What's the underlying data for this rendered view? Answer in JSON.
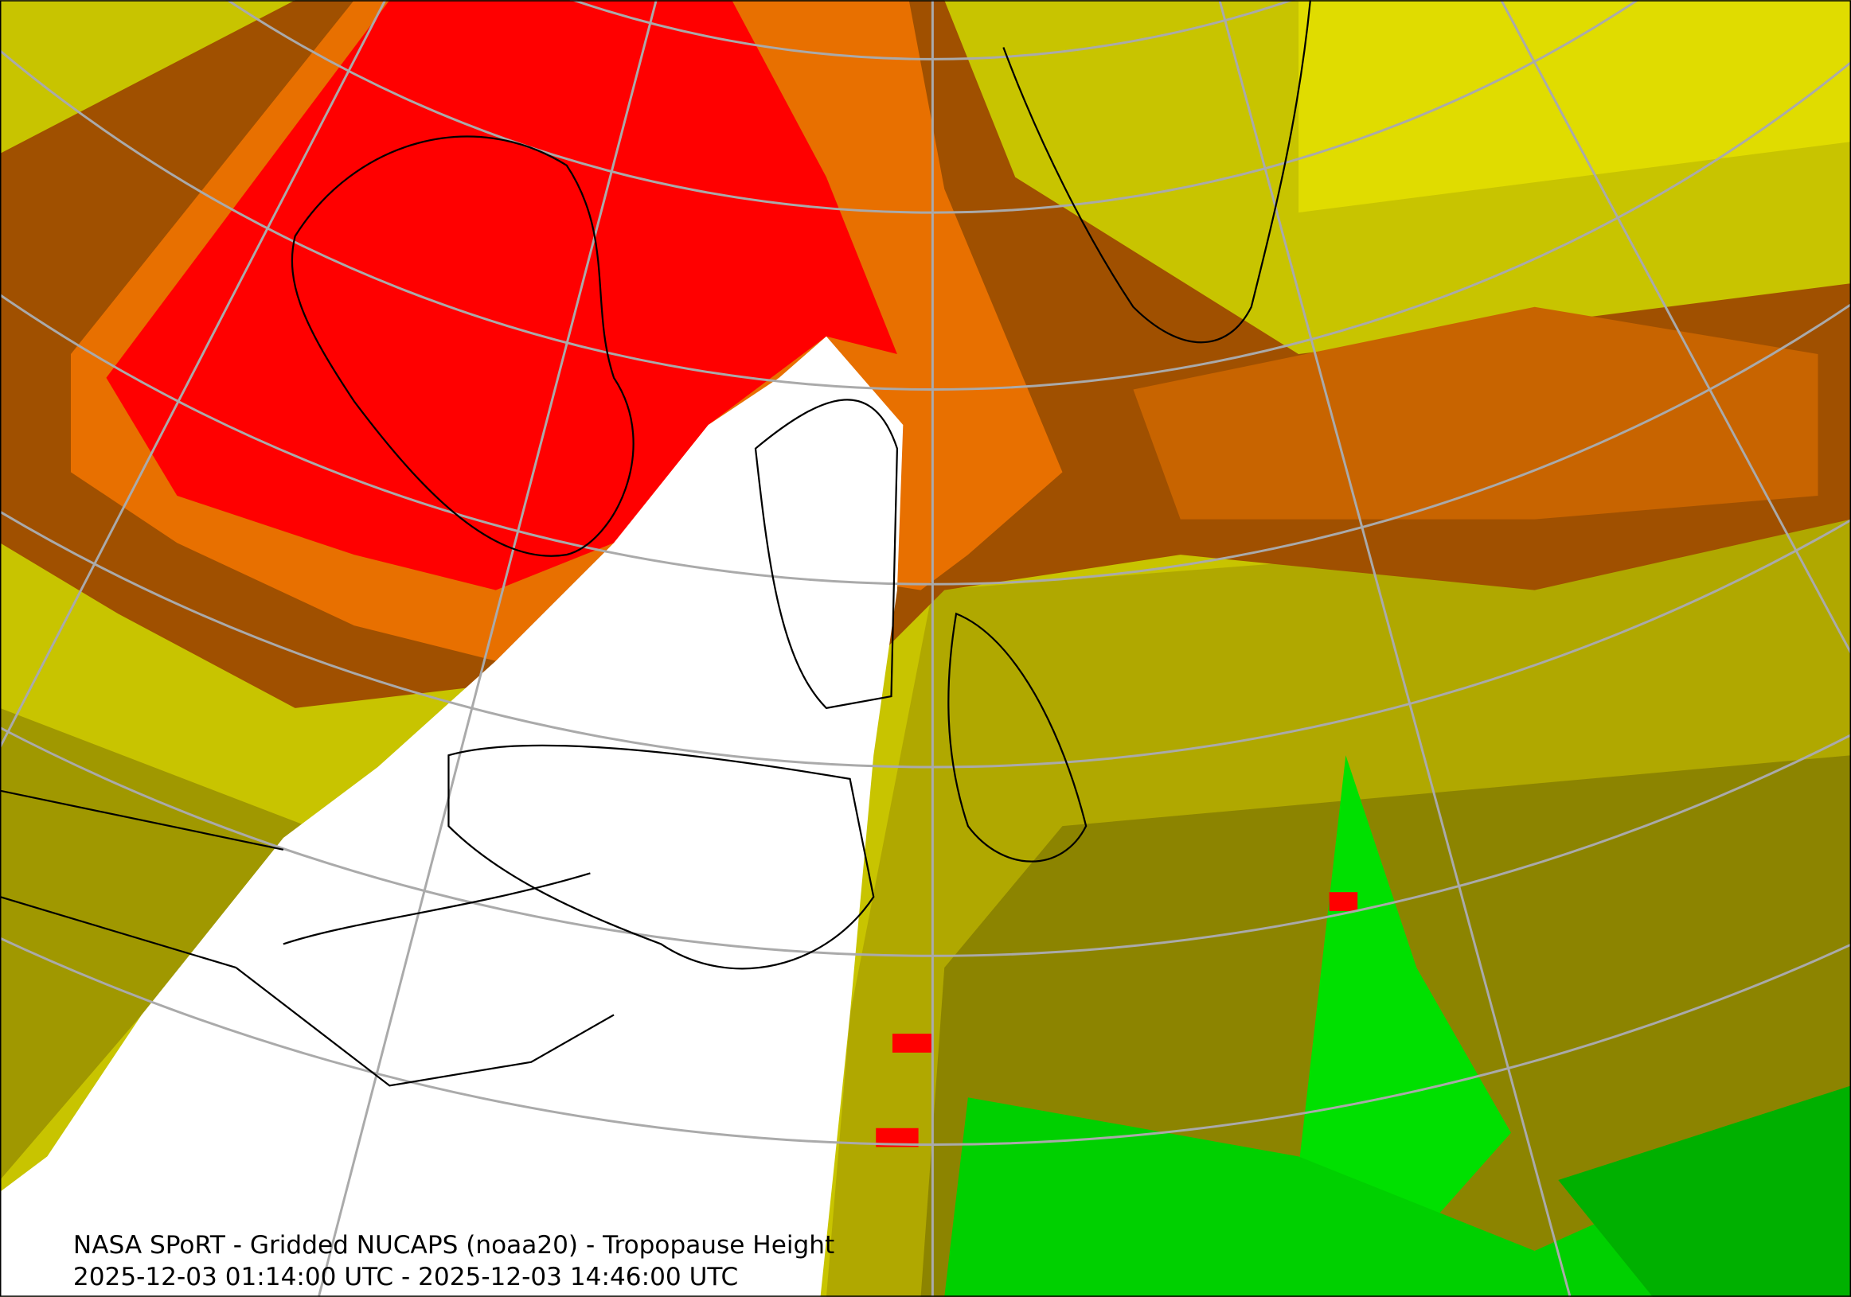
{
  "caption": {
    "title": "NASA SPoRT - Gridded NUCAPS (noaa20) - Tropopause Height",
    "time_range": "2025-12-03 01:14:00 UTC - 2025-12-03 14:46:00 UTC"
  }
}
